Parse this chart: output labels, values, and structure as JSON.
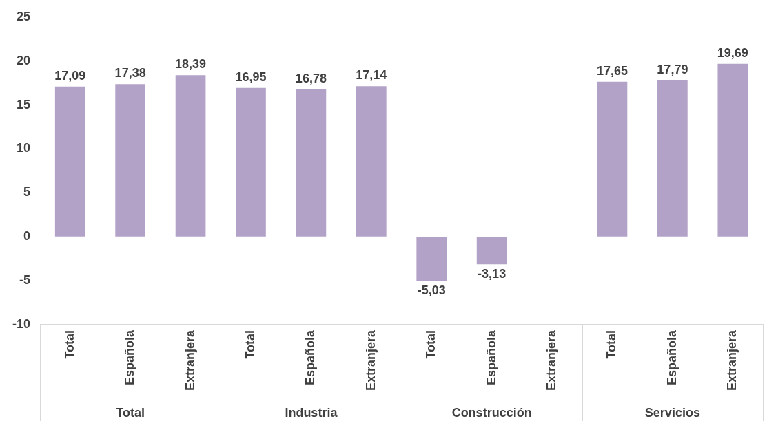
{
  "chart_data": {
    "type": "bar",
    "categories": [
      "Total",
      "Española",
      "Extranjera",
      "Total",
      "Española",
      "Extranjera",
      "Total",
      "Española",
      "Extranjera",
      "Total",
      "Española",
      "Extranjera"
    ],
    "values": [
      17.09,
      17.38,
      18.39,
      16.95,
      16.78,
      17.14,
      -5.03,
      -3.13,
      null,
      17.65,
      17.79,
      19.69
    ],
    "color": "#b3a2c7",
    "annotations": [
      "Total",
      "Industria",
      "Construcción",
      "Servicios"
    ],
    "ylim": [
      -10,
      25
    ],
    "yticks": [
      -10,
      -5,
      0,
      5,
      10,
      15,
      20,
      25
    ],
    "value_labels": [
      "17,09",
      "17,38",
      "18,39",
      "16,95",
      "16,78",
      "17,14",
      "-5,03",
      "-3,13",
      null,
      "17,65",
      "17,79",
      "19,69"
    ],
    "grid": "y",
    "legend": false
  }
}
